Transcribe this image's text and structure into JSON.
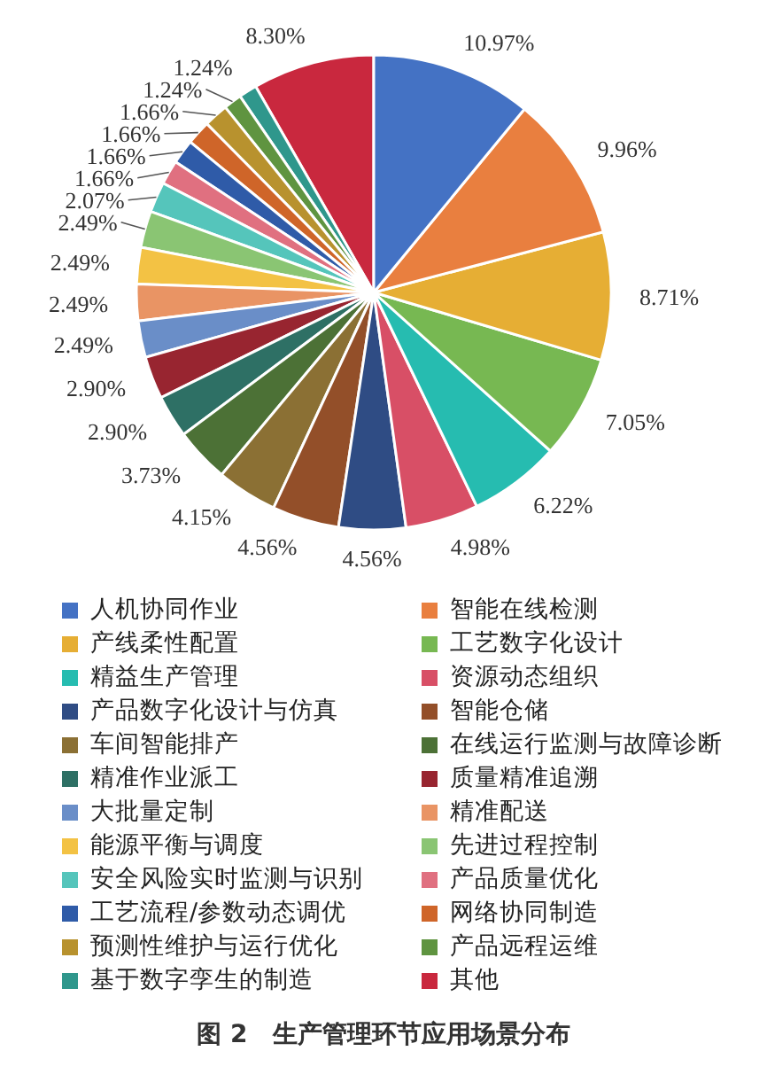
{
  "chart_data": {
    "type": "pie",
    "title": "图 2　生产管理环节应用场景分布",
    "categories": [
      "人机协同作业",
      "智能在线检测",
      "产线柔性配置",
      "工艺数字化设计",
      "精益生产管理",
      "资源动态组织",
      "产品数字化设计与仿真",
      "智能仓储",
      "车间智能排产",
      "在线运行监测与故障诊断",
      "精准作业派工",
      "质量精准追溯",
      "大批量定制",
      "精准配送",
      "能源平衡与调度",
      "先进过程控制",
      "安全风险实时监测与识别",
      "产品质量优化",
      "工艺流程/参数动态调优",
      "网络协同制造",
      "预测性维护与运行优化",
      "产品远程运维",
      "基于数字孪生的制造",
      "其他"
    ],
    "values": [
      10.97,
      9.96,
      8.71,
      7.05,
      6.22,
      4.98,
      4.56,
      4.56,
      4.15,
      3.73,
      2.9,
      2.9,
      2.49,
      2.49,
      2.49,
      2.49,
      2.07,
      1.66,
      1.66,
      1.66,
      1.66,
      1.24,
      1.24,
      8.3
    ],
    "value_labels": [
      "10.97%",
      "9.96%",
      "8.71%",
      "7.05%",
      "6.22%",
      "4.98%",
      "4.56%",
      "4.56%",
      "4.15%",
      "3.73%",
      "2.90%",
      "2.90%",
      "2.49%",
      "2.49%",
      "2.49%",
      "2.49%",
      "2.07%",
      "1.66%",
      "1.66%",
      "1.66%",
      "1.66%",
      "1.24%",
      "1.24%",
      "8.30%"
    ],
    "colors": [
      "#4472c4",
      "#e97f3f",
      "#e6ae34",
      "#77b852",
      "#26bcb0",
      "#d84f66",
      "#2f4c84",
      "#934f29",
      "#8b7034",
      "#4c7136",
      "#2e7065",
      "#982530",
      "#6a8ec8",
      "#e99464",
      "#f3c244",
      "#8ac573",
      "#55c5bb",
      "#e07080",
      "#2f5ba8",
      "#cf6529",
      "#b8922e",
      "#5f9440",
      "#2f978c",
      "#c9283e"
    ],
    "legend": "bottom"
  }
}
